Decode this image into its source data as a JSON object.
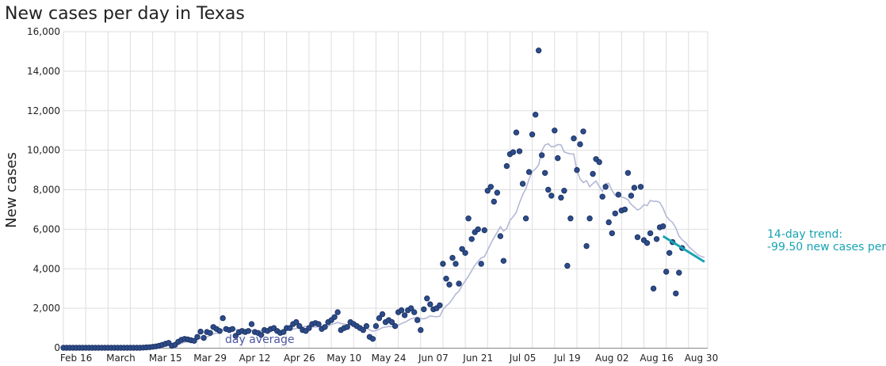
{
  "colors": {
    "dots": "#2d4c8a",
    "average": "#b3b8d6",
    "average_label": "#4b57a3",
    "trend": "#17a3b3"
  },
  "chart_data": {
    "type": "scatter",
    "title": "New cases per day in Texas",
    "xlabel": "",
    "ylabel": "New cases",
    "ylim": [
      0,
      16000
    ],
    "xlim": [
      "2020-02-12",
      "2020-09-01"
    ],
    "grid": true,
    "y_ticks": [
      0,
      2000,
      4000,
      6000,
      8000,
      10000,
      12000,
      14000,
      16000
    ],
    "y_tick_labels": [
      "0",
      "2,000",
      "4,000",
      "6,000",
      "8,000",
      "10,000",
      "12,000",
      "14,000",
      "16,000"
    ],
    "x_ticks": [
      "2020-02-16",
      "2020-03-01",
      "2020-03-15",
      "2020-03-29",
      "2020-04-12",
      "2020-04-26",
      "2020-05-10",
      "2020-05-24",
      "2020-06-07",
      "2020-06-21",
      "2020-07-05",
      "2020-07-19",
      "2020-08-02",
      "2020-08-16",
      "2020-08-30"
    ],
    "x_tick_labels": [
      "Feb 16",
      "March",
      "Mar 15",
      "Mar 29",
      "Apr 12",
      "Apr 26",
      "May 10",
      "May 24",
      "Jun 07",
      "Jun 21",
      "Jul 05",
      "Jul 19",
      "Aug 02",
      "Aug 16",
      "Aug 30"
    ],
    "start_date": "2020-02-12",
    "series": [
      {
        "name": "New cases",
        "values": [
          0,
          0,
          0,
          0,
          0,
          0,
          0,
          0,
          0,
          0,
          0,
          0,
          0,
          0,
          0,
          0,
          0,
          0,
          0,
          0,
          0,
          0,
          0,
          0,
          0,
          10,
          20,
          30,
          50,
          70,
          100,
          150,
          200,
          250,
          100,
          150,
          300,
          400,
          450,
          420,
          380,
          350,
          550,
          820,
          500,
          800,
          750,
          1050,
          950,
          850,
          1500,
          950,
          900,
          950,
          600,
          780,
          850,
          800,
          850,
          1200,
          800,
          750,
          650,
          900,
          850,
          950,
          1000,
          850,
          750,
          800,
          1000,
          1000,
          1200,
          1300,
          1100,
          900,
          850,
          1000,
          1200,
          1250,
          1200,
          950,
          1050,
          1300,
          1400,
          1550,
          1800,
          900,
          1000,
          1050,
          1300,
          1200,
          1100,
          1000,
          900,
          1100,
          550,
          450,
          1100,
          1500,
          1700,
          1300,
          1400,
          1300,
          1100,
          1800,
          1900,
          1650,
          1900,
          2000,
          1800,
          1400,
          900,
          1950,
          2500,
          2200,
          1950,
          2000,
          2150,
          4250,
          3500,
          3200,
          4550,
          4250,
          3250,
          5000,
          4800,
          6550,
          5500,
          5850,
          6000,
          4250,
          5950,
          7950,
          8150,
          7400,
          7850,
          5650,
          4400,
          9200,
          9800,
          9900,
          10900,
          9950,
          8300,
          6550,
          8900,
          10800,
          11800,
          15050,
          9750,
          8850,
          8000,
          7700,
          11000,
          9600,
          7600,
          7950,
          4150,
          6550,
          10600,
          9000,
          10300,
          10950,
          5150,
          6550,
          8800,
          9550,
          9400,
          7650,
          8150,
          6350,
          5800,
          6800,
          7750,
          6950,
          7000,
          8850,
          7700,
          8100,
          5600,
          8150,
          5450,
          5300,
          5800,
          3000,
          5500,
          6100,
          6150,
          3850,
          4800,
          5350,
          2750,
          3800,
          5050
        ]
      },
      {
        "name": "7-day average",
        "values": [
          0,
          0,
          0,
          0,
          0,
          0,
          0,
          0,
          0,
          0,
          0,
          0,
          0,
          0,
          0,
          0,
          0,
          0,
          0,
          0,
          0,
          0,
          0,
          0,
          0,
          1,
          4,
          9,
          16,
          26,
          40,
          61,
          89,
          121,
          134,
          150,
          184,
          229,
          279,
          324,
          360,
          381,
          414,
          482,
          497,
          557,
          608,
          697,
          745,
          760,
          897,
          898,
          921,
          968,
          911,
          921,
          901,
          885,
          850,
          880,
          856,
          843,
          850,
          878,
          857,
          865,
          878,
          850,
          866,
          884,
          907,
          929,
          946,
          979,
          1029,
          1057,
          1079,
          1079,
          1060,
          1050,
          1064,
          1093,
          1107,
          1101,
          1171,
          1224,
          1278,
          1230,
          1200,
          1157,
          1157,
          1125,
          1084,
          1029,
          998,
          993,
          907,
          836,
          870,
          933,
          1019,
          1048,
          1077,
          1071,
          1057,
          1143,
          1232,
          1288,
          1374,
          1471,
          1500,
          1555,
          1480,
          1463,
          1520,
          1614,
          1586,
          1572,
          1593,
          1927,
          2113,
          2254,
          2476,
          2714,
          2865,
          3150,
          3392,
          3622,
          3899,
          4173,
          4376,
          4547,
          4613,
          4950,
          5273,
          5567,
          5847,
          6129,
          5907,
          6036,
          6449,
          6638,
          6858,
          7334,
          7754,
          8053,
          8537,
          8910,
          9052,
          9261,
          9971,
          10264,
          10331,
          10174,
          10192,
          10284,
          10271,
          9914,
          9857,
          9813,
          9807,
          8946,
          8550,
          8359,
          8457,
          8154,
          8314,
          8436,
          8161,
          7917,
          8309,
          8323,
          7963,
          7713,
          7710,
          7640,
          7581,
          7493,
          7257,
          7127,
          6966,
          7061,
          7243,
          7193,
          7460,
          7413,
          7420,
          7349,
          7060,
          6669,
          6470,
          6343,
          6067,
          5660,
          5466,
          5329,
          5136,
          4980,
          4843,
          4697,
          4619,
          4573
        ]
      }
    ],
    "trend": {
      "start": [
        "2020-08-18",
        5650
      ],
      "end": [
        "2020-08-31",
        4350
      ]
    },
    "annotations": {
      "average_label": "day average",
      "trend_label_line1": "14-day trend:",
      "trend_label_line2": "-99.50 new cases per"
    }
  }
}
